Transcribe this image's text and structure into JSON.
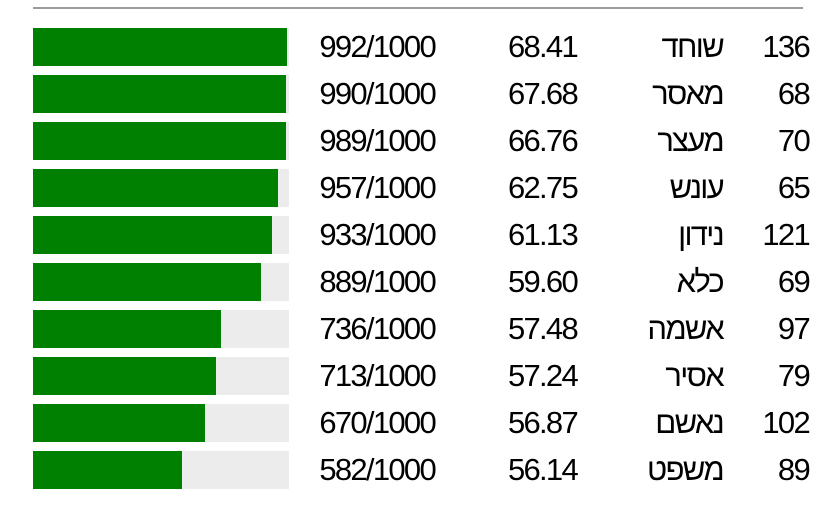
{
  "colors": {
    "bar_fill": "#008000",
    "bar_track": "#ececec",
    "divider": "#9c9c9c",
    "text": "#000000",
    "background": "#ffffff"
  },
  "bar_denominator": 1000,
  "rows": [
    {
      "numerator": 992,
      "ratio_label": "992/1000",
      "score": "68.41",
      "term": "שוחד",
      "count": "136"
    },
    {
      "numerator": 990,
      "ratio_label": "990/1000",
      "score": "67.68",
      "term": "מאסר",
      "count": "68"
    },
    {
      "numerator": 989,
      "ratio_label": "989/1000",
      "score": "66.76",
      "term": "מעצר",
      "count": "70"
    },
    {
      "numerator": 957,
      "ratio_label": "957/1000",
      "score": "62.75",
      "term": "עונש",
      "count": "65"
    },
    {
      "numerator": 933,
      "ratio_label": "933/1000",
      "score": "61.13",
      "term": "נידון",
      "count": "121"
    },
    {
      "numerator": 889,
      "ratio_label": "889/1000",
      "score": "59.60",
      "term": "כלא",
      "count": "69"
    },
    {
      "numerator": 736,
      "ratio_label": "736/1000",
      "score": "57.48",
      "term": "אשמה",
      "count": "97"
    },
    {
      "numerator": 713,
      "ratio_label": "713/1000",
      "score": "57.24",
      "term": "אסיר",
      "count": "79"
    },
    {
      "numerator": 670,
      "ratio_label": "670/1000",
      "score": "56.87",
      "term": "נאשם",
      "count": "102"
    },
    {
      "numerator": 582,
      "ratio_label": "582/1000",
      "score": "56.14",
      "term": "משפט",
      "count": "89"
    }
  ],
  "chart_data": {
    "type": "bar",
    "orientation": "horizontal",
    "categories": [
      "שוחד",
      "מאסר",
      "מעצר",
      "עונש",
      "נידון",
      "כלא",
      "אשמה",
      "אסיר",
      "נאשם",
      "משפט"
    ],
    "series": [
      {
        "name": "ratio_per_1000",
        "values": [
          992,
          990,
          989,
          957,
          933,
          889,
          736,
          713,
          670,
          582
        ]
      },
      {
        "name": "score",
        "values": [
          68.41,
          67.68,
          66.76,
          62.75,
          61.13,
          59.6,
          57.48,
          57.24,
          56.87,
          56.14
        ]
      },
      {
        "name": "count",
        "values": [
          136,
          68,
          70,
          65,
          121,
          69,
          97,
          79,
          102,
          89
        ]
      }
    ],
    "ratio_labels": [
      "992/1000",
      "990/1000",
      "989/1000",
      "957/1000",
      "933/1000",
      "889/1000",
      "736/1000",
      "713/1000",
      "670/1000",
      "582/1000"
    ],
    "xlim": [
      0,
      1000
    ],
    "bar_color": "#008000",
    "track_color": "#ececec",
    "title": "",
    "xlabel": "",
    "ylabel": "",
    "grid": false,
    "legend": false
  }
}
